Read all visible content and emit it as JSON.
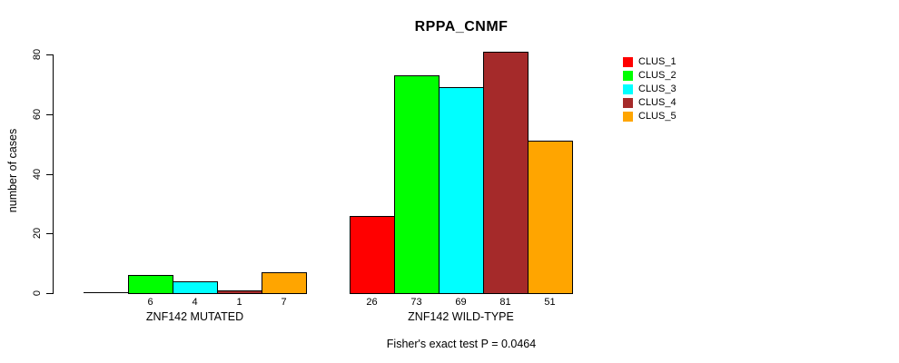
{
  "title": "RPPA_CNMF",
  "chart_data": {
    "type": "bar",
    "title": "RPPA_CNMF",
    "xlabel": "",
    "ylabel": "number of cases",
    "ylim": [
      0,
      80
    ],
    "yticks": [
      0,
      20,
      40,
      60,
      80
    ],
    "grid": false,
    "legend_position": "right",
    "legend": [
      "CLUS_1",
      "CLUS_2",
      "CLUS_3",
      "CLUS_4",
      "CLUS_5"
    ],
    "series_colors": [
      "#ff0000",
      "#00ff00",
      "#00ffff",
      "#a52a2a",
      "#ffa500"
    ],
    "groups": [
      {
        "label": "ZNF142 MUTATED",
        "values": [
          0,
          6,
          4,
          1,
          7
        ],
        "value_labels": [
          "",
          "6",
          "4",
          "1",
          "7"
        ]
      },
      {
        "label": "ZNF142 WILD-TYPE",
        "values": [
          26,
          73,
          69,
          81,
          51
        ],
        "value_labels": [
          "26",
          "73",
          "69",
          "81",
          "51"
        ]
      }
    ],
    "annotation": "Fisher's exact test P = 0.0464"
  }
}
